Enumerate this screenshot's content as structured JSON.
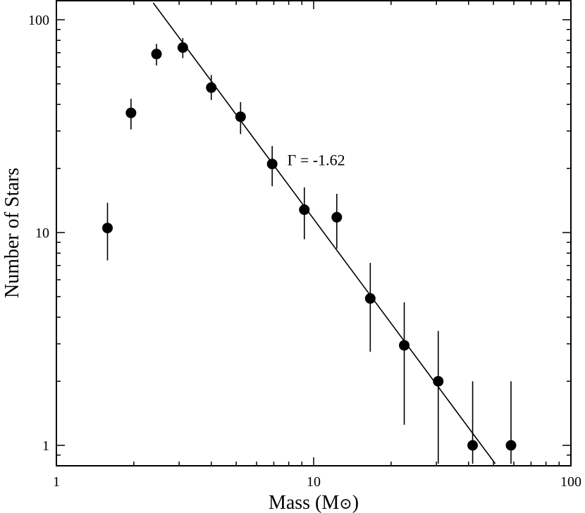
{
  "chart_data": {
    "type": "scatter",
    "xlabel": "Mass (M",
    "xlabel_symbol": "⊙",
    "xlabel_close": ")",
    "ylabel": "Number of Stars",
    "xscale": "log",
    "yscale": "log",
    "xlim": [
      1,
      100
    ],
    "ylim": [
      0.82,
      120
    ],
    "x_ticks": [
      {
        "value": 1,
        "label": "1"
      },
      {
        "value": 10,
        "label": "10"
      },
      {
        "value": 100,
        "label": "100"
      }
    ],
    "y_ticks": [
      {
        "value": 1,
        "label": "1"
      },
      {
        "value": 10,
        "label": "10"
      },
      {
        "value": 100,
        "label": "100"
      }
    ],
    "grid": false,
    "points": [
      {
        "x": 1.58,
        "y": 10.5,
        "err_low": 7.4,
        "err_high": 13.8
      },
      {
        "x": 1.95,
        "y": 36.5,
        "err_low": 30.5,
        "err_high": 42.5
      },
      {
        "x": 2.45,
        "y": 69,
        "err_low": 61,
        "err_high": 77
      },
      {
        "x": 3.1,
        "y": 74,
        "err_low": 66,
        "err_high": 82
      },
      {
        "x": 4.0,
        "y": 48,
        "err_low": 42,
        "err_high": 55
      },
      {
        "x": 5.2,
        "y": 35,
        "err_low": 29,
        "err_high": 41
      },
      {
        "x": 6.9,
        "y": 21,
        "err_low": 16.5,
        "err_high": 25.5
      },
      {
        "x": 9.2,
        "y": 12.8,
        "err_low": 9.3,
        "err_high": 16.3
      },
      {
        "x": 12.3,
        "y": 11.8,
        "err_low": 8.4,
        "err_high": 15.2
      },
      {
        "x": 16.6,
        "y": 4.9,
        "err_low": 2.75,
        "err_high": 7.2
      },
      {
        "x": 22.5,
        "y": 2.95,
        "err_low": 1.25,
        "err_high": 4.7
      },
      {
        "x": 30.5,
        "y": 2.0,
        "err_low": 0.82,
        "err_high": 3.45
      },
      {
        "x": 41.5,
        "y": 1.0,
        "err_low": 0.82,
        "err_high": 2.0
      },
      {
        "x": 58.5,
        "y": 1.0,
        "err_low": 0.82,
        "err_high": 2.0
      }
    ],
    "fit_line": {
      "slope": -1.62,
      "x_start": 2.38,
      "y_start": 120,
      "x_end": 50.8,
      "y_end": 0.82
    },
    "annotation": "Γ = -1.62",
    "annotation_position": {
      "x": 7.9,
      "y": 22
    }
  }
}
